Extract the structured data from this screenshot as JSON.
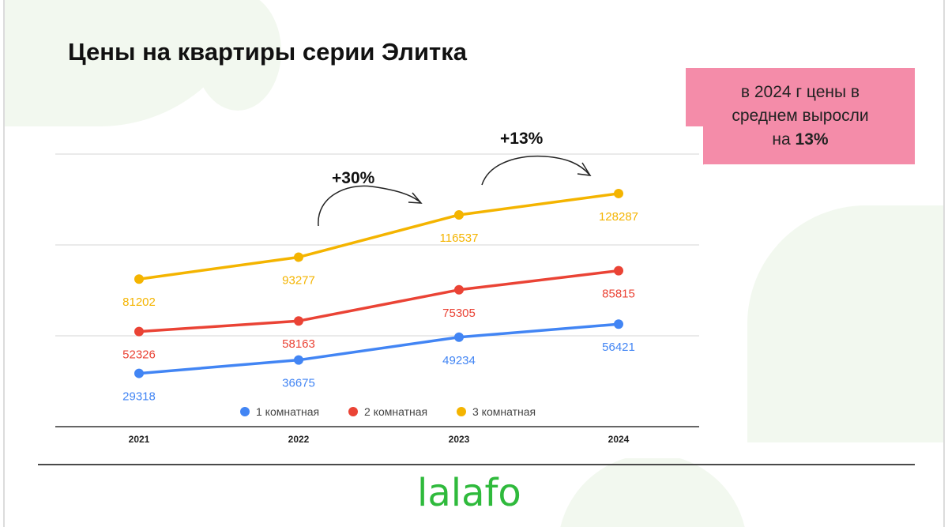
{
  "slide": {
    "title": "Цены на квартиры серии Элитка",
    "callout_line1": "в 2024 г цены в",
    "callout_line2": "среднем выросли",
    "callout_line3_prefix": "на ",
    "callout_line3_bold": "13%",
    "logo": "lalafo"
  },
  "colors": {
    "accent_green": "#2fba3c",
    "callout_pink": "#f48ca9"
  },
  "annotations": [
    {
      "label": "+30%",
      "from_category": "2022",
      "to_category": "2023"
    },
    {
      "label": "+13%",
      "from_category": "2023",
      "to_category": "2024"
    }
  ],
  "chart_data": {
    "type": "line",
    "categories": [
      "2021",
      "2022",
      "2023",
      "2024"
    ],
    "series": [
      {
        "name": "1 комнатная",
        "color": "#4285f4",
        "values": [
          29318,
          36675,
          49234,
          56421
        ]
      },
      {
        "name": "2 комнатная",
        "color": "#ea4335",
        "values": [
          52326,
          58163,
          75305,
          85815
        ]
      },
      {
        "name": "3 комнатная",
        "color": "#f4b400",
        "values": [
          81202,
          93277,
          116537,
          128287
        ]
      }
    ],
    "ylim": [
      0,
      150000
    ],
    "grid": true,
    "legend": "bottom",
    "data_labels": "below"
  }
}
